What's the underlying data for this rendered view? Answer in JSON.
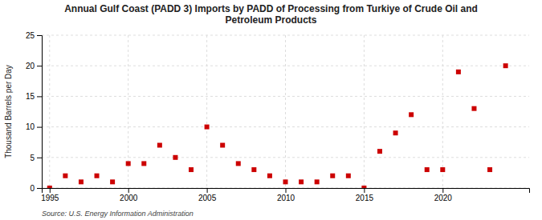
{
  "chart_data": {
    "type": "scatter",
    "title": "Annual Gulf Coast (PADD 3) Imports by PADD of Processing from Turkiye of Crude Oil and\nPetroleum Products",
    "ylabel": "Thousand Barrels per Day",
    "annotations": [
      "Source: U.S. Energy Information Administration"
    ],
    "x": [
      1995,
      1996,
      1997,
      1998,
      1999,
      2000,
      2001,
      2002,
      2003,
      2004,
      2005,
      2006,
      2007,
      2008,
      2009,
      2010,
      2011,
      2012,
      2013,
      2014,
      2015,
      2016,
      2017,
      2018,
      2019,
      2020,
      2021,
      2022,
      2023,
      2024
    ],
    "values": [
      0,
      2,
      1,
      2,
      1,
      4,
      4,
      7,
      5,
      3,
      10,
      7,
      4,
      3,
      2,
      1,
      1,
      1,
      2,
      2,
      0,
      6,
      9,
      12,
      3,
      3,
      19,
      13,
      3,
      20
    ],
    "color": "#cc0000",
    "marker": "square",
    "xlim": [
      1994.5,
      2025.5
    ],
    "ylim": [
      0,
      25
    ],
    "xticks": [
      1995,
      2000,
      2005,
      2010,
      2015,
      2020
    ],
    "yticks": [
      0,
      5,
      10,
      15,
      20,
      25
    ],
    "grid": true
  }
}
